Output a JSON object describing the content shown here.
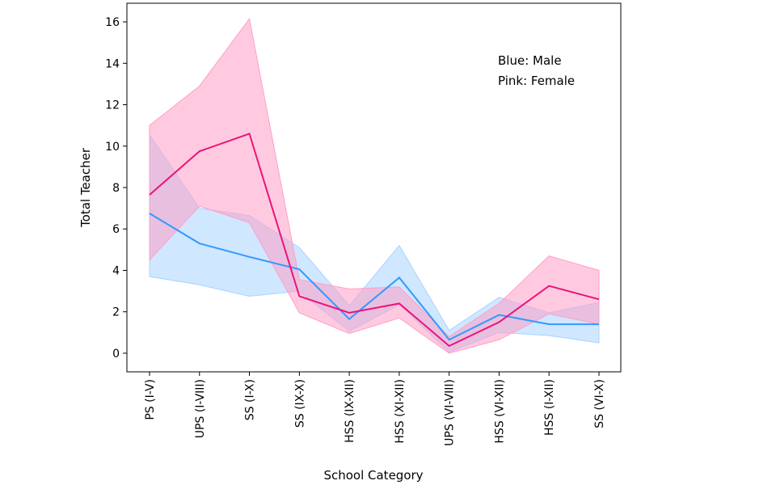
{
  "chart_data": {
    "type": "line",
    "xlabel": "School Category",
    "ylabel": "Total Teacher",
    "ylim": [
      -0.9,
      16.9
    ],
    "yticks": [
      0,
      2,
      4,
      6,
      8,
      10,
      12,
      14,
      16
    ],
    "categories": [
      "PS (I-V)",
      "UPS (I-VIII)",
      "SS (I-X)",
      "SS (IX-X)",
      "HSS (IX-XII)",
      "HSS (XI-XII)",
      "UPS (VI-VIII)",
      "HSS (VI-XII)",
      "HSS (I-XII)",
      "SS (VI-X)"
    ],
    "annotations": [
      "Blue: Male",
      "Pink: Female"
    ],
    "grid": false,
    "series": [
      {
        "color": "#3399ff",
        "band_color": "#a8d4ff",
        "values": [
          6.75,
          5.3,
          4.65,
          4.05,
          1.65,
          3.65,
          0.65,
          1.85,
          1.4,
          1.4
        ],
        "lower": [
          3.7,
          3.3,
          2.75,
          3.0,
          1.05,
          2.35,
          0.05,
          1.0,
          0.85,
          0.5
        ],
        "upper": [
          10.55,
          7.0,
          6.65,
          5.1,
          2.3,
          5.2,
          1.1,
          2.7,
          1.95,
          2.45
        ]
      },
      {
        "color": "#ee1177",
        "band_color": "#ff9ec6",
        "values": [
          7.65,
          9.75,
          10.6,
          2.75,
          1.95,
          2.4,
          0.35,
          1.5,
          3.25,
          2.6
        ],
        "lower": [
          4.5,
          7.1,
          6.3,
          1.95,
          0.95,
          1.7,
          0.0,
          0.65,
          1.9,
          1.4
        ],
        "upper": [
          11.0,
          12.9,
          16.15,
          3.55,
          3.1,
          3.2,
          0.8,
          2.4,
          4.7,
          4.0
        ]
      }
    ]
  }
}
